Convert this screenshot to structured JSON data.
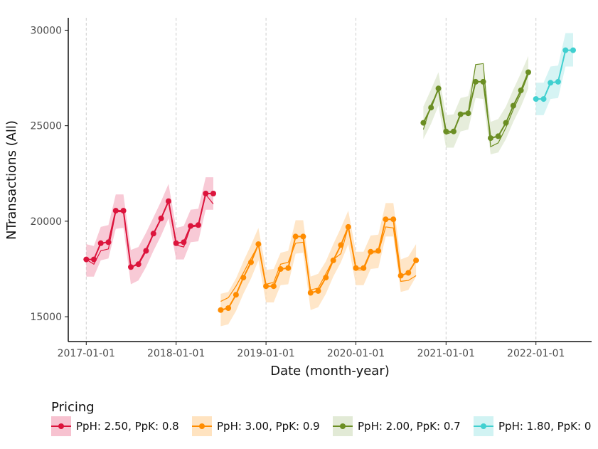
{
  "chart_data": {
    "type": "line",
    "xlabel": "Date (month-year)",
    "ylabel": "NTransactions (All)",
    "x_ticks": [
      "2017-01-01",
      "2018-01-01",
      "2019-01-01",
      "2020-01-01",
      "2021-01-01",
      "2022-01-01"
    ],
    "y_ticks": [
      15000,
      20000,
      25000,
      30000
    ],
    "ylim": [
      13700,
      30650
    ],
    "xlim": [
      "2016-10-20",
      "2022-08-15"
    ],
    "grid": "vertical dashed lines at x ticks",
    "legend": {
      "title": "Pricing",
      "position": "bottom"
    },
    "series": [
      {
        "name": "PpH: 2.50, PpK: 0.8",
        "color": "#dc143c",
        "band_color": "#f5b3c4",
        "points": [
          {
            "x": "2017-01-01",
            "y": 18000,
            "fit": 18000,
            "lo": 17100,
            "hi": 18800
          },
          {
            "x": "2017-02-01",
            "y": 18000,
            "fit": 17750,
            "lo": 17100,
            "hi": 18700
          },
          {
            "x": "2017-03-01",
            "y": 18850,
            "fit": 18450,
            "lo": 17950,
            "hi": 19700
          },
          {
            "x": "2017-04-01",
            "y": 18900,
            "fit": 18550,
            "lo": 18050,
            "hi": 19800
          },
          {
            "x": "2017-05-01",
            "y": 20550,
            "fit": 20500,
            "lo": 19600,
            "hi": 21400
          },
          {
            "x": "2017-06-01",
            "y": 20550,
            "fit": 20500,
            "lo": 19650,
            "hi": 21400
          },
          {
            "x": "2017-07-01",
            "y": 17600,
            "fit": 17600,
            "lo": 16700,
            "hi": 18500
          },
          {
            "x": "2017-08-01",
            "y": 17750,
            "fit": 17800,
            "lo": 16900,
            "hi": 18650
          },
          {
            "x": "2017-09-01",
            "y": 18450,
            "fit": 18550,
            "lo": 17600,
            "hi": 19400
          },
          {
            "x": "2017-10-01",
            "y": 19350,
            "fit": 19300,
            "lo": 18450,
            "hi": 20200
          },
          {
            "x": "2017-11-01",
            "y": 20150,
            "fit": 20150,
            "lo": 19250,
            "hi": 21050
          },
          {
            "x": "2017-12-01",
            "y": 21050,
            "fit": 21050,
            "lo": 20150,
            "hi": 21950
          },
          {
            "x": "2018-01-01",
            "y": 18850,
            "fit": 18750,
            "lo": 18000,
            "hi": 19650
          },
          {
            "x": "2018-02-01",
            "y": 18900,
            "fit": 18650,
            "lo": 18000,
            "hi": 19750
          },
          {
            "x": "2018-03-01",
            "y": 19750,
            "fit": 19700,
            "lo": 18900,
            "hi": 20600
          },
          {
            "x": "2018-04-01",
            "y": 19800,
            "fit": 19750,
            "lo": 18950,
            "hi": 20650
          },
          {
            "x": "2018-05-01",
            "y": 21450,
            "fit": 21400,
            "lo": 20600,
            "hi": 22300
          },
          {
            "x": "2018-06-01",
            "y": 21450,
            "fit": 20900,
            "lo": 20600,
            "hi": 22300
          }
        ]
      },
      {
        "name": "PpH: 3.00, PpK: 0.9",
        "color": "#ff8c00",
        "band_color": "#ffdcb0",
        "points": [
          {
            "x": "2018-07-01",
            "y": 15350,
            "fit": 15800,
            "lo": 14500,
            "hi": 16200
          },
          {
            "x": "2018-08-01",
            "y": 15450,
            "fit": 16000,
            "lo": 14600,
            "hi": 16300
          },
          {
            "x": "2018-09-01",
            "y": 16150,
            "fit": 16600,
            "lo": 15300,
            "hi": 17000
          },
          {
            "x": "2018-10-01",
            "y": 17050,
            "fit": 17300,
            "lo": 16200,
            "hi": 17900
          },
          {
            "x": "2018-11-01",
            "y": 17850,
            "fit": 18050,
            "lo": 17000,
            "hi": 18750
          },
          {
            "x": "2018-12-01",
            "y": 18800,
            "fit": 18750,
            "lo": 17950,
            "hi": 19650
          },
          {
            "x": "2019-01-01",
            "y": 16600,
            "fit": 16700,
            "lo": 15750,
            "hi": 17450
          },
          {
            "x": "2019-02-01",
            "y": 16600,
            "fit": 16800,
            "lo": 15750,
            "hi": 17500
          },
          {
            "x": "2019-03-01",
            "y": 17500,
            "fit": 17750,
            "lo": 16650,
            "hi": 18350
          },
          {
            "x": "2019-04-01",
            "y": 17550,
            "fit": 17850,
            "lo": 16700,
            "hi": 18450
          },
          {
            "x": "2019-05-01",
            "y": 19200,
            "fit": 18850,
            "lo": 18300,
            "hi": 20050
          },
          {
            "x": "2019-06-01",
            "y": 19200,
            "fit": 18900,
            "lo": 18350,
            "hi": 20050
          },
          {
            "x": "2019-07-01",
            "y": 16250,
            "fit": 16400,
            "lo": 15350,
            "hi": 17100
          },
          {
            "x": "2019-08-01",
            "y": 16350,
            "fit": 16500,
            "lo": 15500,
            "hi": 17250
          },
          {
            "x": "2019-09-01",
            "y": 17050,
            "fit": 17250,
            "lo": 16200,
            "hi": 17900
          },
          {
            "x": "2019-10-01",
            "y": 17950,
            "fit": 18000,
            "lo": 17100,
            "hi": 18800
          },
          {
            "x": "2019-11-01",
            "y": 18750,
            "fit": 18300,
            "lo": 17850,
            "hi": 19650
          },
          {
            "x": "2019-12-01",
            "y": 19700,
            "fit": 19700,
            "lo": 18800,
            "hi": 20550
          },
          {
            "x": "2020-01-01",
            "y": 17550,
            "fit": 17450,
            "lo": 16650,
            "hi": 18400
          },
          {
            "x": "2020-02-01",
            "y": 17550,
            "fit": 17450,
            "lo": 16650,
            "hi": 18400
          },
          {
            "x": "2020-03-01",
            "y": 18400,
            "fit": 18350,
            "lo": 17500,
            "hi": 19250
          },
          {
            "x": "2020-04-01",
            "y": 18450,
            "fit": 18350,
            "lo": 17550,
            "hi": 19300
          },
          {
            "x": "2020-05-01",
            "y": 20100,
            "fit": 19700,
            "lo": 19200,
            "hi": 20950
          },
          {
            "x": "2020-06-01",
            "y": 20100,
            "fit": 19650,
            "lo": 19200,
            "hi": 20950
          },
          {
            "x": "2020-07-01",
            "y": 17150,
            "fit": 16850,
            "lo": 16300,
            "hi": 18000
          },
          {
            "x": "2020-08-01",
            "y": 17300,
            "fit": 16900,
            "lo": 16400,
            "hi": 18150
          },
          {
            "x": "2020-09-01",
            "y": 17950,
            "fit": 17150,
            "lo": 17100,
            "hi": 18800
          }
        ]
      },
      {
        "name": "PpH: 2.00, PpK: 0.7",
        "color": "#6b8e23",
        "band_color": "#dbe5cc",
        "points": [
          {
            "x": "2020-10-01",
            "y": 25150,
            "fit": 24800,
            "lo": 24300,
            "hi": 26000
          },
          {
            "x": "2020-11-01",
            "y": 25950,
            "fit": 26100,
            "lo": 25100,
            "hi": 26900
          },
          {
            "x": "2020-12-01",
            "y": 26950,
            "fit": 26850,
            "lo": 26050,
            "hi": 27800
          },
          {
            "x": "2021-01-01",
            "y": 24700,
            "fit": 24550,
            "lo": 23850,
            "hi": 25550
          },
          {
            "x": "2021-02-01",
            "y": 24700,
            "fit": 24700,
            "lo": 23850,
            "hi": 25600
          },
          {
            "x": "2021-03-01",
            "y": 25600,
            "fit": 25650,
            "lo": 24700,
            "hi": 26450
          },
          {
            "x": "2021-04-01",
            "y": 25650,
            "fit": 25700,
            "lo": 24800,
            "hi": 26550
          },
          {
            "x": "2021-05-01",
            "y": 27300,
            "fit": 28200,
            "lo": 26450,
            "hi": 28200
          },
          {
            "x": "2021-06-01",
            "y": 27300,
            "fit": 28250,
            "lo": 26400,
            "hi": 28200
          },
          {
            "x": "2021-07-01",
            "y": 24350,
            "fit": 23900,
            "lo": 23500,
            "hi": 25200
          },
          {
            "x": "2021-08-01",
            "y": 24450,
            "fit": 24100,
            "lo": 23600,
            "hi": 25350
          },
          {
            "x": "2021-09-01",
            "y": 25150,
            "fit": 24900,
            "lo": 24300,
            "hi": 26000
          },
          {
            "x": "2021-10-01",
            "y": 26050,
            "fit": 25850,
            "lo": 25200,
            "hi": 26900
          },
          {
            "x": "2021-11-01",
            "y": 26850,
            "fit": 26700,
            "lo": 26000,
            "hi": 27750
          },
          {
            "x": "2021-12-01",
            "y": 27800,
            "fit": 27700,
            "lo": 26950,
            "hi": 28650
          }
        ]
      },
      {
        "name": "PpH: 1.80, PpK: 0",
        "color": "#40d0d0",
        "band_color": "#c5f0f0",
        "points": [
          {
            "x": "2022-01-01",
            "y": 26400,
            "fit": 26400,
            "lo": 25550,
            "hi": 27250
          },
          {
            "x": "2022-02-01",
            "y": 26400,
            "fit": 26400,
            "lo": 25550,
            "hi": 27250
          },
          {
            "x": "2022-03-01",
            "y": 27250,
            "fit": 27250,
            "lo": 26400,
            "hi": 28100
          },
          {
            "x": "2022-04-01",
            "y": 27300,
            "fit": 27300,
            "lo": 26450,
            "hi": 28150
          },
          {
            "x": "2022-05-01",
            "y": 28950,
            "fit": 28950,
            "lo": 28100,
            "hi": 29850
          },
          {
            "x": "2022-06-01",
            "y": 28950,
            "fit": 28950,
            "lo": 28100,
            "hi": 29850
          }
        ]
      }
    ]
  }
}
